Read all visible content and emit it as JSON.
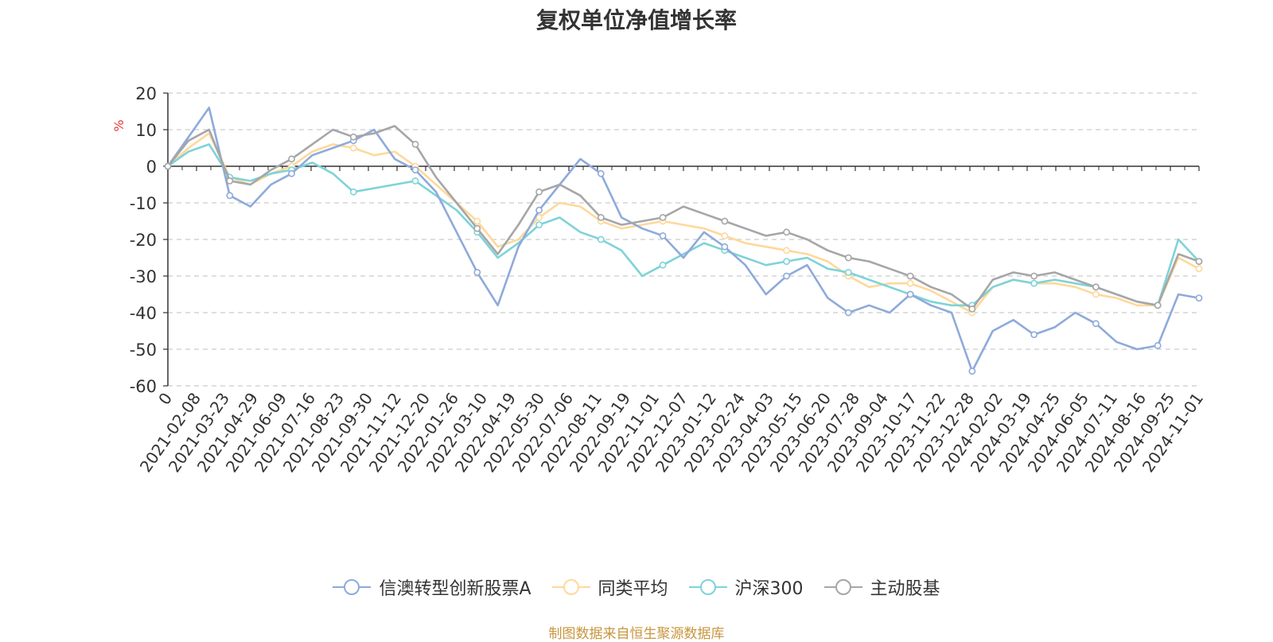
{
  "chart_data": {
    "type": "line",
    "title": "复权单位净值增长率",
    "ylabel": "%",
    "ylim": [
      -60,
      20
    ],
    "yticks": [
      20,
      10,
      0,
      -10,
      -20,
      -30,
      -40,
      -50,
      -60
    ],
    "grid": true,
    "legend_position": "bottom-center",
    "x_tick_labels": [
      "0",
      "2021-02-08",
      "2021-03-23",
      "2021-04-29",
      "2021-06-09",
      "2021-07-16",
      "2021-08-23",
      "2021-09-30",
      "2021-11-12",
      "2021-12-20",
      "2022-01-26",
      "2022-03-10",
      "2022-04-19",
      "2022-05-30",
      "2022-07-06",
      "2022-08-11",
      "2022-09-19",
      "2022-11-01",
      "2022-12-07",
      "2023-01-12",
      "2023-02-24",
      "2023-04-03",
      "2023-05-15",
      "2023-06-20",
      "2023-07-28",
      "2023-09-04",
      "2023-10-17",
      "2023-11-22",
      "2023-12-28",
      "2024-02-02",
      "2024-03-19",
      "2024-04-25",
      "2024-06-05",
      "2024-07-11",
      "2024-08-16",
      "2024-09-25",
      "2024-11-01"
    ],
    "series": [
      {
        "name": "信澳转型创新股票A",
        "color": "#8eaadb",
        "values": [
          0,
          8,
          16,
          -8,
          -11,
          -5,
          -2,
          3,
          5,
          7,
          10,
          2,
          -1,
          -7,
          -18,
          -29,
          -38,
          -22,
          -12,
          -5,
          2,
          -2,
          -14,
          -17,
          -19,
          -25,
          -18,
          -22,
          -27,
          -35,
          -30,
          -27,
          -36,
          -40,
          -38,
          -40,
          -35,
          -38,
          -40,
          -56,
          -45,
          -42,
          -46,
          -44,
          -40,
          -43,
          -48,
          -50,
          -49,
          -35,
          -36
        ]
      },
      {
        "name": "同类平均",
        "color": "#ffd89b",
        "values": [
          0,
          5,
          9,
          -3,
          -5,
          -2,
          0,
          4,
          6,
          5,
          3,
          4,
          0,
          -5,
          -10,
          -15,
          -22,
          -20,
          -14,
          -10,
          -11,
          -15,
          -17,
          -16,
          -15,
          -16,
          -17,
          -19,
          -21,
          -22,
          -23,
          -24,
          -26,
          -30,
          -33,
          -32,
          -32,
          -34,
          -37,
          -40,
          -33,
          -31,
          -32,
          -32,
          -33,
          -35,
          -36,
          -38,
          -38,
          -25,
          -28
        ]
      },
      {
        "name": "沪深300",
        "color": "#7ed3d8",
        "values": [
          0,
          4,
          6,
          -3,
          -4,
          -2,
          -1,
          1,
          -2,
          -7,
          -6,
          -5,
          -4,
          -8,
          -12,
          -18,
          -25,
          -21,
          -16,
          -14,
          -18,
          -20,
          -23,
          -30,
          -27,
          -24,
          -21,
          -23,
          -25,
          -27,
          -26,
          -25,
          -28,
          -29,
          -31,
          -33,
          -35,
          -37,
          -38,
          -38,
          -33,
          -31,
          -32,
          -31,
          -32,
          -33,
          -35,
          -37,
          -38,
          -20,
          -26
        ]
      },
      {
        "name": "主动股基",
        "color": "#a6a6a6",
        "values": [
          0,
          7,
          10,
          -4,
          -5,
          -1,
          2,
          6,
          10,
          8,
          9,
          11,
          6,
          -3,
          -10,
          -17,
          -24,
          -16,
          -7,
          -5,
          -8,
          -14,
          -16,
          -15,
          -14,
          -11,
          -13,
          -15,
          -17,
          -19,
          -18,
          -20,
          -23,
          -25,
          -26,
          -28,
          -30,
          -33,
          -35,
          -39,
          -31,
          -29,
          -30,
          -29,
          -31,
          -33,
          -35,
          -37,
          -38,
          -24,
          -26
        ]
      }
    ]
  },
  "legend": {
    "items": [
      {
        "label": "信澳转型创新股票A"
      },
      {
        "label": "同类平均"
      },
      {
        "label": "沪深300"
      },
      {
        "label": "主动股基"
      }
    ]
  },
  "footer": {
    "source": "制图数据来自恒生聚源数据库"
  }
}
